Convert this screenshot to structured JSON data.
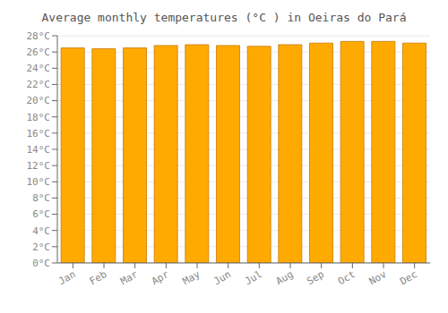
{
  "chart_data": {
    "type": "bar",
    "title": "Average monthly temperatures (°C ) in Oeiras do Pará",
    "categories": [
      "Jan",
      "Feb",
      "Mar",
      "Apr",
      "May",
      "Jun",
      "Jul",
      "Aug",
      "Sep",
      "Oct",
      "Nov",
      "Dec"
    ],
    "values": [
      26.5,
      26.4,
      26.5,
      26.8,
      26.9,
      26.8,
      26.7,
      26.9,
      27.1,
      27.3,
      27.3,
      27.1
    ],
    "color": "#FFAA00",
    "ylim": [
      0,
      28
    ],
    "yticks": [
      {
        "value": 0,
        "label": "0°C"
      },
      {
        "value": 2,
        "label": "2°C"
      },
      {
        "value": 4,
        "label": "4°C"
      },
      {
        "value": 6,
        "label": "6°C"
      },
      {
        "value": 8,
        "label": "8°C"
      },
      {
        "value": 10,
        "label": "10°C"
      },
      {
        "value": 12,
        "label": "12°C"
      },
      {
        "value": 14,
        "label": "14°C"
      },
      {
        "value": 16,
        "label": "16°C"
      },
      {
        "value": 18,
        "label": "18°C"
      },
      {
        "value": 20,
        "label": "20°C"
      },
      {
        "value": 22,
        "label": "22°C"
      },
      {
        "value": 24,
        "label": "24°C"
      },
      {
        "value": 26,
        "label": "26°C"
      },
      {
        "value": 28,
        "label": "28°C"
      }
    ],
    "grid": true
  }
}
